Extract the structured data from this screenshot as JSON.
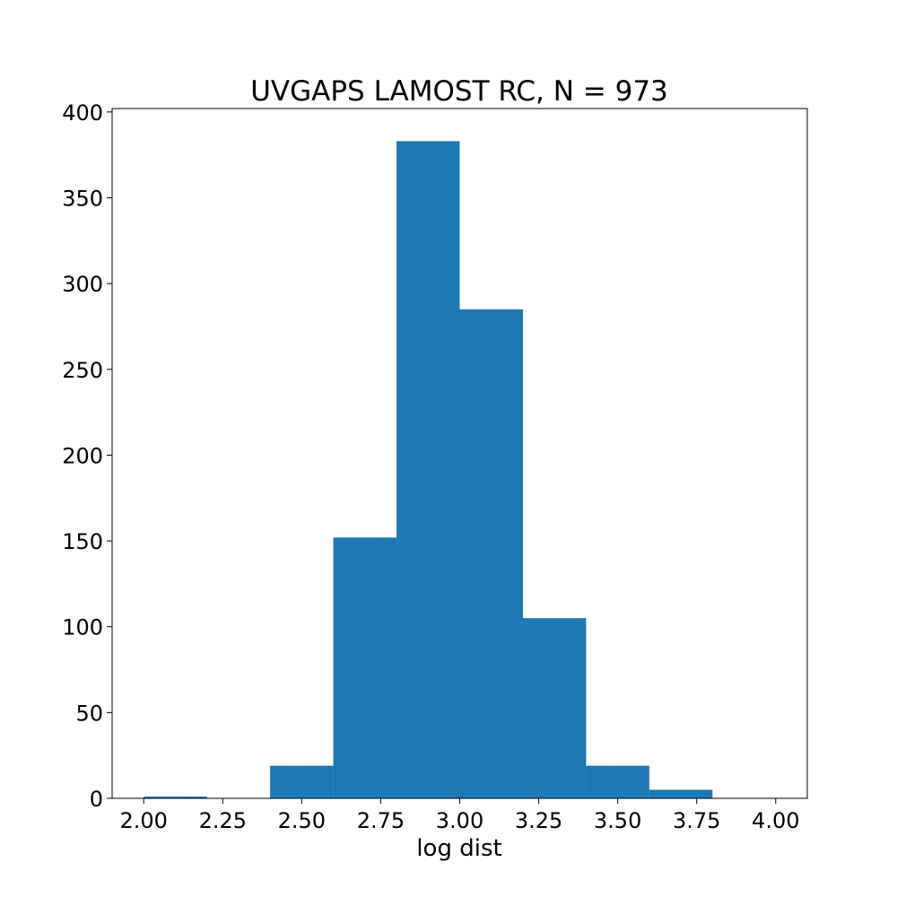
{
  "chart_data": {
    "type": "bar",
    "title": "UVGAPS LAMOST RC, N = 973",
    "xlabel": "log dist",
    "ylabel": "",
    "bin_edges": [
      2.0,
      2.2,
      2.4,
      2.6,
      2.8,
      3.0,
      3.2,
      3.4,
      3.6,
      3.8,
      4.0
    ],
    "values": [
      1,
      0,
      19,
      152,
      383,
      285,
      105,
      19,
      5,
      0
    ],
    "xlim": [
      1.9,
      4.1
    ],
    "ylim": [
      0,
      402
    ],
    "xticks": [
      "2.00",
      "2.25",
      "2.50",
      "2.75",
      "3.00",
      "3.25",
      "3.50",
      "3.75",
      "4.00"
    ],
    "xtick_values": [
      2.0,
      2.25,
      2.5,
      2.75,
      3.0,
      3.25,
      3.5,
      3.75,
      4.0
    ],
    "yticks": [
      "0",
      "50",
      "100",
      "150",
      "200",
      "250",
      "300",
      "350",
      "400"
    ],
    "ytick_values": [
      0,
      50,
      100,
      150,
      200,
      250,
      300,
      350,
      400
    ],
    "bar_color": "#1f77b4",
    "grid": false,
    "legend": "none"
  }
}
